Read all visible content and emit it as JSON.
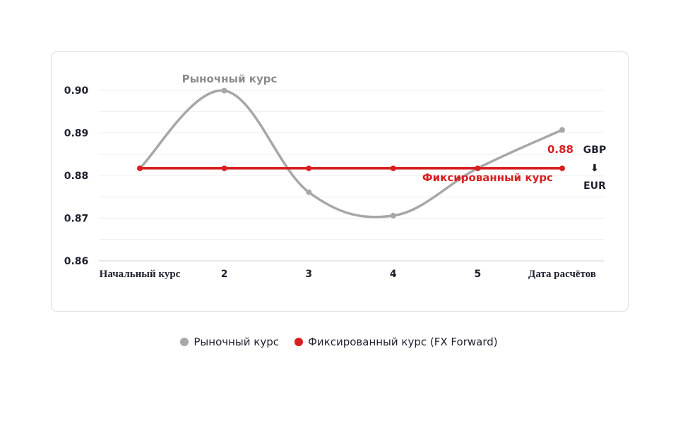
{
  "chart_data": {
    "type": "line",
    "categories": [
      "Начальный курс",
      "2",
      "3",
      "4",
      "5",
      "Дата расчётов"
    ],
    "ylim": [
      0.86,
      0.9
    ],
    "yticks": [
      "0.90",
      "0.89",
      "0.88",
      "0.87",
      "0.86"
    ],
    "grid": true,
    "legend_position": "bottom",
    "series": [
      {
        "name": "Рыночный курс",
        "label": "Рыночный курс",
        "color": "#a7a7a7",
        "values": [
          0.8817,
          0.8999,
          0.8761,
          0.8706,
          0.8817,
          0.8907
        ]
      },
      {
        "name": "Фиксированный курс (FX Forward)",
        "label": "Фиксированный курс",
        "color": "#d81e1e",
        "values": [
          0.8817,
          0.8817,
          0.8817,
          0.8817,
          0.8817,
          0.8817
        ]
      }
    ],
    "annotations": {
      "fixed_value": "0.88",
      "currency_from": "GBP",
      "arrow": "⬇",
      "currency_to": "EUR"
    }
  }
}
